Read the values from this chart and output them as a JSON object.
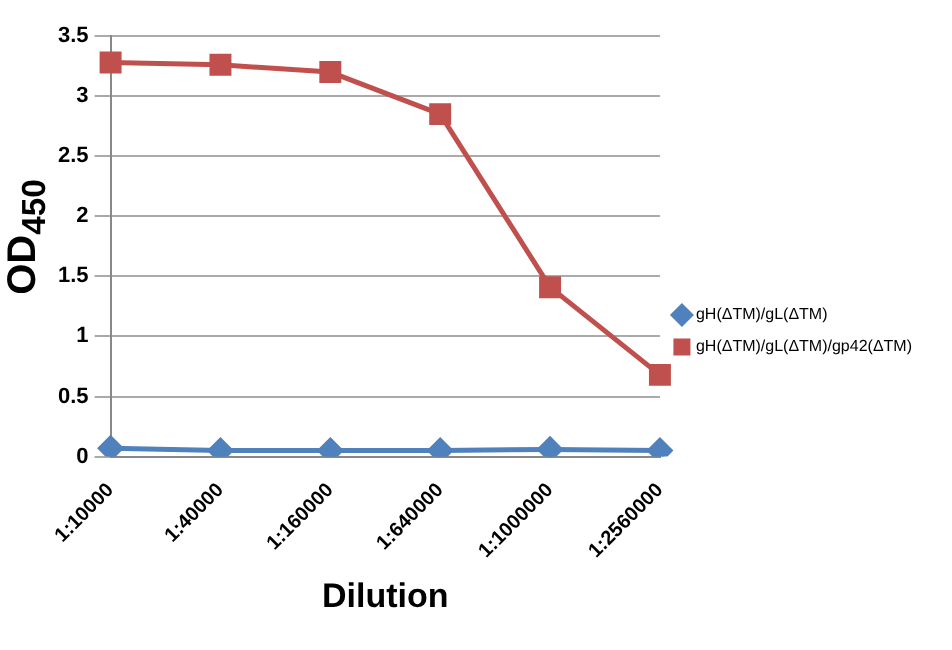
{
  "chart_data": {
    "type": "line",
    "xlabel": "Dilution",
    "ylabel": "OD$_{450}$",
    "categories": [
      "1:10000",
      "1:40000",
      "1:160000",
      "1:640000",
      "1:1000000",
      "1:2560000"
    ],
    "series": [
      {
        "name": "gH(ΔTM)/gL(ΔTM)",
        "color": "#4f81bd",
        "marker": "diamond",
        "values": [
          0.07,
          0.05,
          0.05,
          0.05,
          0.06,
          0.05
        ]
      },
      {
        "name": "gH(ΔTM)/gL(ΔTM)/gp42(ΔTM)",
        "color": "#c0504d",
        "marker": "square",
        "values": [
          3.28,
          3.26,
          3.2,
          2.85,
          1.41,
          0.68
        ]
      }
    ],
    "ylim": [
      0,
      3.5
    ],
    "yticks": [
      0,
      0.5,
      1,
      1.5,
      2,
      2.5,
      3,
      3.5
    ],
    "grid": "y",
    "legend": "right",
    "line_style": "solid"
  }
}
